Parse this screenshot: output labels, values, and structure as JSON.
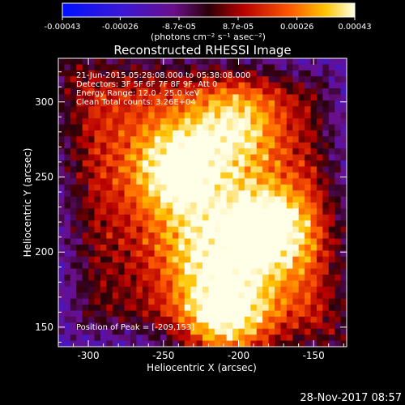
{
  "colorbar": {
    "tick_labels": [
      "-0.00043",
      "-0.00026",
      "-8.7e-05",
      "8.7e-05",
      "0.00026",
      "0.00043"
    ],
    "tick_values": [
      -0.00043,
      -0.00026,
      -8.7e-05,
      8.7e-05,
      0.00026,
      0.00043
    ],
    "range": [
      -0.00043,
      0.00043
    ],
    "units_label": "(photons cm⁻² s⁻¹ asec⁻²)"
  },
  "footer": {
    "timestamp": "28-Nov-2017 08:57"
  },
  "chart_data": {
    "type": "heatmap",
    "title": "Reconstructed RHESSI Image",
    "xlabel": "Heliocentric X (arcsec)",
    "ylabel": "Heliocentric Y (arcsec)",
    "xlim": [
      -320,
      -128
    ],
    "ylim": [
      137,
      329
    ],
    "x_ticks": [
      -300,
      -250,
      -200,
      -150
    ],
    "y_ticks": [
      150,
      200,
      250,
      300
    ],
    "annotations": [
      "21-Jun-2015 05:28:08.000 to 05:38:08.000",
      "Detectors: 3F 5F 6F 7F 8F 9F, Att 0",
      "Energy Range: 12.0 - 25.0 keV",
      "Clean      Total counts: 3.26E+04"
    ],
    "peak_label": "Position of Peak = [-209,153]",
    "peak_position": [
      -209,
      153
    ],
    "colormap": "rhessi blue-purple-red-yellow-white",
    "sources": [
      {
        "x": -209,
        "y": 153,
        "peak": 1.0
      },
      {
        "x": -180,
        "y": 215,
        "peak": 0.95
      },
      {
        "x": -240,
        "y": 255,
        "peak": 0.85
      },
      {
        "x": -200,
        "y": 285,
        "peak": 0.7
      },
      {
        "x": -225,
        "y": 200,
        "peak": 0.55
      }
    ]
  }
}
